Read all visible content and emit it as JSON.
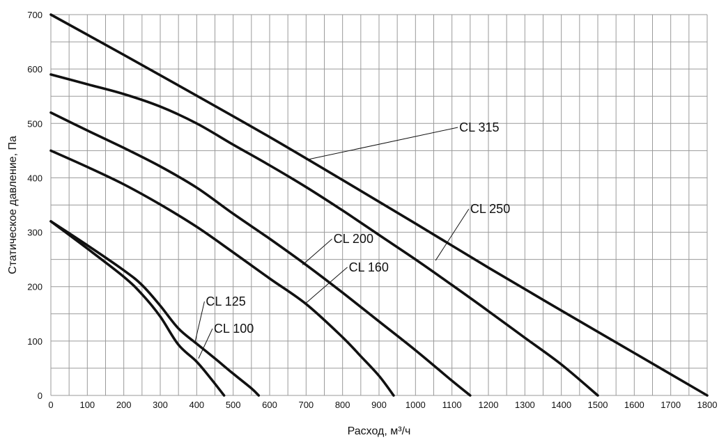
{
  "chart_data": {
    "type": "line",
    "title": "",
    "xlabel": "Расход, м³/ч",
    "ylabel": "Статическое давление, Па",
    "xlim": [
      0,
      1800
    ],
    "ylim": [
      0,
      700
    ],
    "x_ticks": [
      0,
      100,
      200,
      300,
      400,
      500,
      600,
      700,
      800,
      900,
      1000,
      1100,
      1200,
      1300,
      1400,
      1500,
      1600,
      1700,
      1800
    ],
    "y_ticks": [
      0,
      100,
      200,
      300,
      400,
      500,
      600,
      700
    ],
    "grid": true,
    "legend": "none",
    "series": [
      {
        "name": "CL 315",
        "x": [
          0,
          200,
          400,
          600,
          800,
          1000,
          1200,
          1400,
          1600,
          1800
        ],
        "y": [
          700,
          626,
          551,
          475,
          396,
          316,
          235,
          156,
          78,
          0
        ],
        "label_at": [
          1120,
          485
        ],
        "leader_to": [
          700,
          433
        ]
      },
      {
        "name": "CL 250",
        "x": [
          0,
          100,
          200,
          300,
          400,
          500,
          600,
          700,
          800,
          900,
          1000,
          1100,
          1200,
          1300,
          1400,
          1500
        ],
        "y": [
          590,
          572,
          554,
          531,
          500,
          461,
          423,
          383,
          340,
          295,
          250,
          203,
          155,
          106,
          57,
          0
        ],
        "label_at": [
          1150,
          335
        ],
        "leader_to": [
          1055,
          248
        ]
      },
      {
        "name": "CL 200",
        "x": [
          0,
          100,
          200,
          300,
          400,
          500,
          600,
          700,
          800,
          900,
          1000,
          1100,
          1150
        ],
        "y": [
          520,
          487,
          455,
          421,
          382,
          334,
          288,
          240,
          189,
          136,
          83,
          27,
          0
        ],
        "label_at": [
          775,
          280
        ],
        "leader_to": [
          690,
          240
        ]
      },
      {
        "name": "CL 160",
        "x": [
          0,
          100,
          200,
          300,
          400,
          500,
          600,
          700,
          800,
          850,
          900,
          940
        ],
        "y": [
          450,
          420,
          388,
          351,
          310,
          263,
          215,
          168,
          107,
          72,
          36,
          0
        ],
        "label_at": [
          817,
          228
        ],
        "leader_to": [
          700,
          170
        ]
      },
      {
        "name": "CL 125",
        "x": [
          0,
          100,
          200,
          250,
          300,
          350,
          400,
          450,
          500,
          550,
          570
        ],
        "y": [
          320,
          276,
          230,
          203,
          165,
          123,
          95,
          68,
          40,
          13,
          0
        ],
        "label_at": [
          425,
          165
        ],
        "leader_to": [
          395,
          97
        ]
      },
      {
        "name": "CL 100",
        "x": [
          0,
          100,
          200,
          250,
          300,
          350,
          400,
          440,
          475
        ],
        "y": [
          320,
          270,
          218,
          186,
          145,
          93,
          62,
          30,
          0
        ],
        "label_at": [
          447,
          115
        ],
        "leader_to": [
          405,
          68
        ]
      }
    ]
  }
}
